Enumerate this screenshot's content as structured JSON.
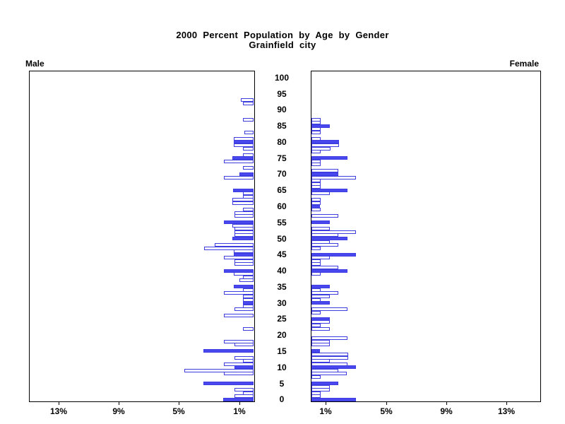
{
  "chart_data": {
    "type": "bar",
    "variant": "population_pyramid",
    "title": "2000 Percent Population by Age by Gender",
    "subtitle": "Grainfield city",
    "left_series_label": "Male",
    "right_series_label": "Female",
    "axis": {
      "percent_ticks": [
        1,
        5,
        9,
        13
      ],
      "left_tick_labels": [
        "13%",
        "9%",
        "5%",
        "1%"
      ],
      "right_tick_labels": [
        "1%",
        "5%",
        "9%",
        "13%"
      ],
      "percent_max": 15,
      "age_min": 0,
      "age_max": 100,
      "age_tick_step": 5
    },
    "highlight_rule": "bars for ages divisible by 5 are solid blue; other ages are white with blue outline",
    "colors": {
      "bar_blue": "#4848ee",
      "bar_outline_blue": "#3e3ee0",
      "bar_white": "#ffffff",
      "axis_black": "#000000",
      "background": "#ffffff"
    },
    "series": [
      {
        "name": "Male",
        "side": "left",
        "values_percent_by_age": [
          2.0,
          1.25,
          0.7,
          1.25,
          0,
          3.31,
          0,
          0,
          1.95,
          4.58,
          1.28,
          1.98,
          0.7,
          1.25,
          0,
          3.31,
          0,
          1.25,
          1.95,
          0,
          0,
          0,
          0.7,
          0,
          0,
          0,
          1.95,
          0,
          1.25,
          0.7,
          0.7,
          0.7,
          0.7,
          1.95,
          0.7,
          1.33,
          0,
          0.94,
          0.7,
          1.33,
          1.95,
          0,
          1.25,
          1.25,
          1.95,
          1.33,
          1.33,
          3.28,
          2.56,
          0,
          1.4,
          1.25,
          1.25,
          1.25,
          1.41,
          1.98,
          0,
          1.25,
          1.25,
          0.7,
          0,
          1.41,
          1.41,
          0.7,
          0.7,
          1.36,
          0,
          0,
          0,
          1.95,
          0.94,
          0,
          0.7,
          0,
          1.98,
          1.41,
          0.7,
          0,
          0.7,
          1.33,
          1.33,
          1.33,
          0,
          0.59,
          0,
          0,
          0,
          0.7,
          0,
          0,
          0,
          0,
          0.7,
          0.83,
          0,
          0,
          0,
          0,
          0,
          0,
          0
        ]
      },
      {
        "name": "Female",
        "side": "right",
        "values_percent_by_age": [
          2.96,
          0.62,
          0.62,
          1.21,
          1.21,
          1.76,
          0,
          0.62,
          2.34,
          1.76,
          2.96,
          2.38,
          1.24,
          2.46,
          2.46,
          0.57,
          0,
          1.21,
          1.24,
          2.41,
          0,
          0,
          1.21,
          0.62,
          1.21,
          1.21,
          0,
          0.62,
          2.38,
          0,
          1.21,
          0.62,
          1.21,
          1.79,
          0.62,
          1.21,
          0,
          0,
          0,
          0.62,
          2.41,
          1.79,
          0.62,
          0.62,
          1.21,
          2.96,
          0,
          0.62,
          1.79,
          1.21,
          2.41,
          1.79,
          2.96,
          1.21,
          0,
          1.24,
          0,
          1.79,
          0,
          0.62,
          0.57,
          0.62,
          0.62,
          0,
          1.21,
          2.41,
          0.62,
          0.62,
          0.62,
          2.96,
          1.79,
          1.79,
          0,
          0.62,
          0.62,
          2.41,
          0,
          0.62,
          1.27,
          1.82,
          1.82,
          0.59,
          0,
          0.59,
          0.59,
          1.24,
          0.62,
          0.62,
          0,
          0,
          0,
          0,
          0,
          0,
          0,
          0,
          0,
          0,
          0,
          0,
          0
        ]
      }
    ]
  }
}
